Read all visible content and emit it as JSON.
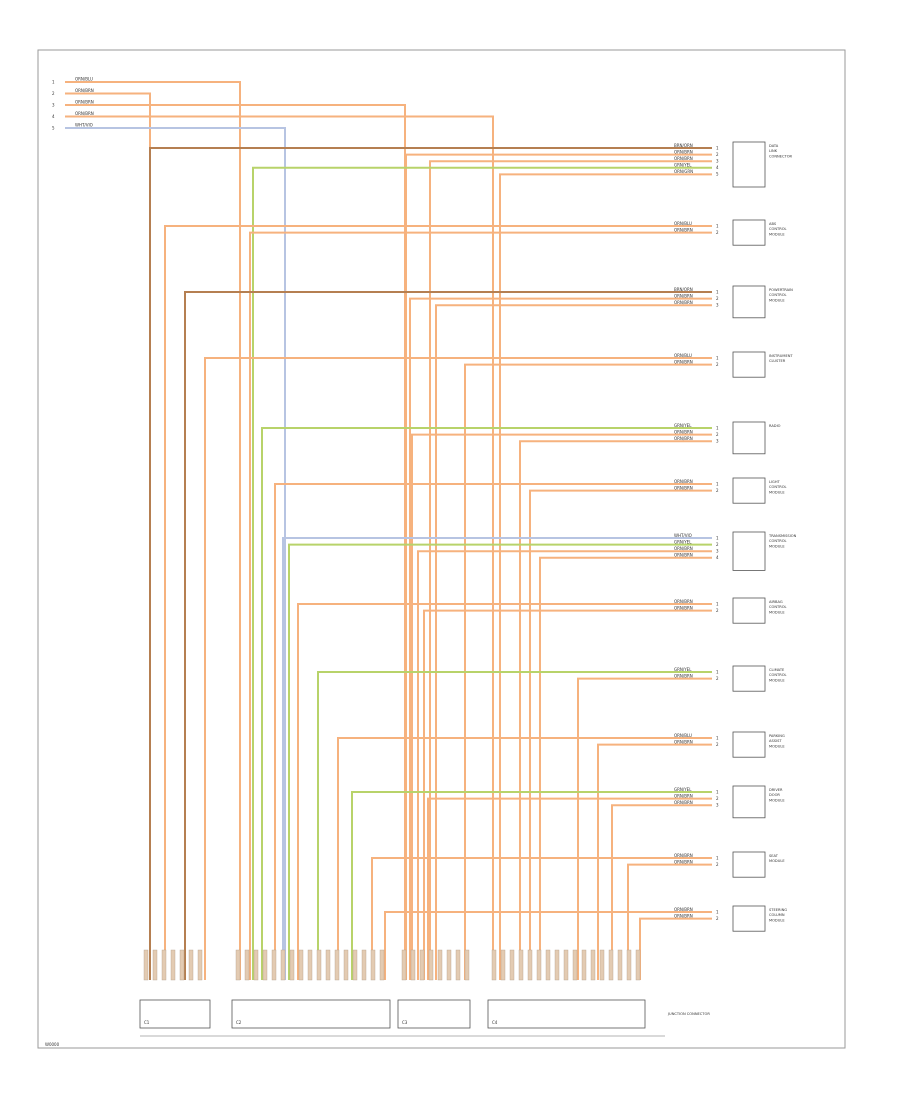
{
  "colors": {
    "orange": "#f6b27e",
    "brown": "#b57f51",
    "tan": "#d6a37a",
    "green": "#b8d36a",
    "blue": "#b7c4e2",
    "frame": "#9a9a9a"
  },
  "top_feeds": [
    {
      "label": "ORN/BLU",
      "pin": "1",
      "color": "orange"
    },
    {
      "label": "ORN/BRN",
      "pin": "2",
      "color": "orange"
    },
    {
      "label": "ORN/BRN",
      "pin": "3",
      "color": "orange"
    },
    {
      "label": "ORN/BRN",
      "pin": "4",
      "color": "orange"
    },
    {
      "label": "WHT/VIO",
      "pin": "5",
      "color": "blue"
    }
  ],
  "components": [
    {
      "name": "DATA LINK CONNECTOR",
      "wires": [
        {
          "label": "BRN/ORN",
          "color": "brown"
        },
        {
          "label": "ORN/BRN",
          "color": "orange"
        },
        {
          "label": "ORN/BRN",
          "color": "orange"
        },
        {
          "label": "GRN/YEL",
          "color": "green"
        },
        {
          "label": "ORN/GRN",
          "color": "orange"
        }
      ]
    },
    {
      "name": "ABS CONTROL MODULE",
      "wires": [
        {
          "label": "ORN/BLU",
          "color": "orange"
        },
        {
          "label": "ORN/BRN",
          "color": "orange"
        }
      ]
    },
    {
      "name": "POWERTRAIN CONTROL MODULE",
      "wires": [
        {
          "label": "BRN/ORN",
          "color": "brown"
        },
        {
          "label": "ORN/BRN",
          "color": "orange"
        },
        {
          "label": "ORN/BRN",
          "color": "orange"
        }
      ]
    },
    {
      "name": "INSTRUMENT CLUSTER",
      "wires": [
        {
          "label": "ORN/BLU",
          "color": "orange"
        },
        {
          "label": "ORN/BRN",
          "color": "orange"
        }
      ]
    },
    {
      "name": "RADIO",
      "wires": [
        {
          "label": "GRN/YEL",
          "color": "green"
        },
        {
          "label": "ORN/BRN",
          "color": "orange"
        },
        {
          "label": "ORN/BRN",
          "color": "orange"
        }
      ]
    },
    {
      "name": "LIGHT CONTROL MODULE",
      "wires": [
        {
          "label": "ORN/BRN",
          "color": "orange"
        },
        {
          "label": "ORN/BRN",
          "color": "orange"
        }
      ]
    },
    {
      "name": "TRANSMISSION CONTROL MODULE",
      "wires": [
        {
          "label": "WHT/VIO",
          "color": "blue"
        },
        {
          "label": "GRN/YEL",
          "color": "green"
        },
        {
          "label": "ORN/BRN",
          "color": "orange"
        },
        {
          "label": "ORN/BRN",
          "color": "orange"
        }
      ]
    },
    {
      "name": "AIRBAG CONTROL MODULE",
      "wires": [
        {
          "label": "ORN/BRN",
          "color": "orange"
        },
        {
          "label": "ORN/BRN",
          "color": "orange"
        }
      ]
    },
    {
      "name": "CLIMATE CONTROL MODULE",
      "wires": [
        {
          "label": "GRN/YEL",
          "color": "green"
        },
        {
          "label": "ORN/BRN",
          "color": "orange"
        }
      ]
    },
    {
      "name": "PARKING ASSIST MODULE",
      "wires": [
        {
          "label": "ORN/BLU",
          "color": "orange"
        },
        {
          "label": "ORN/BRN",
          "color": "orange"
        }
      ]
    },
    {
      "name": "DRIVER DOOR MODULE",
      "wires": [
        {
          "label": "GRN/YEL",
          "color": "green"
        },
        {
          "label": "ORN/BRN",
          "color": "orange"
        },
        {
          "label": "ORN/BRN",
          "color": "orange"
        }
      ]
    },
    {
      "name": "SEAT MODULE",
      "wires": [
        {
          "label": "ORN/BRN",
          "color": "orange"
        },
        {
          "label": "ORN/BRN",
          "color": "orange"
        }
      ]
    },
    {
      "name": "STEERING COLUMN MODULE",
      "wires": [
        {
          "label": "ORN/BRN",
          "color": "orange"
        },
        {
          "label": "ORN/BRN",
          "color": "orange"
        }
      ]
    }
  ],
  "bottom_connectors": [
    {
      "label": "C1"
    },
    {
      "label": "C2"
    },
    {
      "label": "C3"
    },
    {
      "label": "C4"
    }
  ],
  "bottom_label": "JUNCTION CONNECTOR",
  "footer_code": "W0000"
}
